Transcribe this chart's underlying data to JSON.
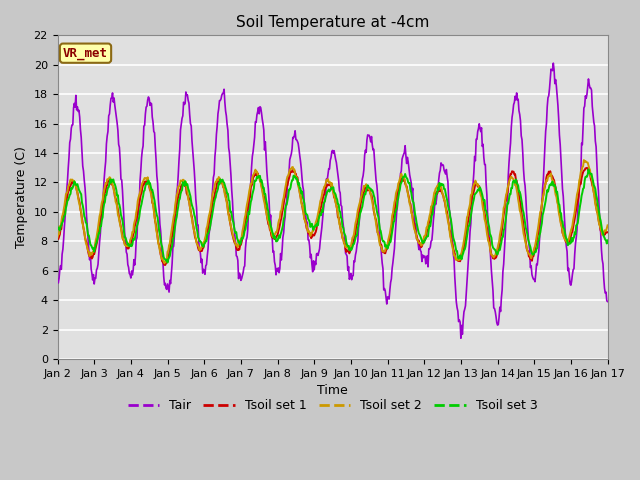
{
  "title": "Soil Temperature at -4cm",
  "xlabel": "Time",
  "ylabel": "Temperature (C)",
  "ylim": [
    0,
    22
  ],
  "yticks": [
    0,
    2,
    4,
    6,
    8,
    10,
    12,
    14,
    16,
    18,
    20,
    22
  ],
  "xtick_labels": [
    "Jan 2",
    "Jan 3",
    "Jan 4",
    "Jan 5",
    "Jan 6",
    "Jan 7",
    "Jan 8",
    "Jan 9",
    "Jan 10",
    "Jan 11",
    "Jan 12",
    "Jan 13",
    "Jan 14",
    "Jan 15",
    "Jan 16",
    "Jan 17"
  ],
  "annotation_text": "VR_met",
  "colors": {
    "Tair": "#9900cc",
    "Tsoil1": "#cc0000",
    "Tsoil2": "#cc9900",
    "Tsoil3": "#00cc00"
  },
  "legend_labels": [
    "Tair",
    "Tsoil set 1",
    "Tsoil set 2",
    "Tsoil set 3"
  ],
  "title_fontsize": 11,
  "axis_label_fontsize": 9,
  "tick_fontsize": 8,
  "n_points": 721,
  "days": 15
}
